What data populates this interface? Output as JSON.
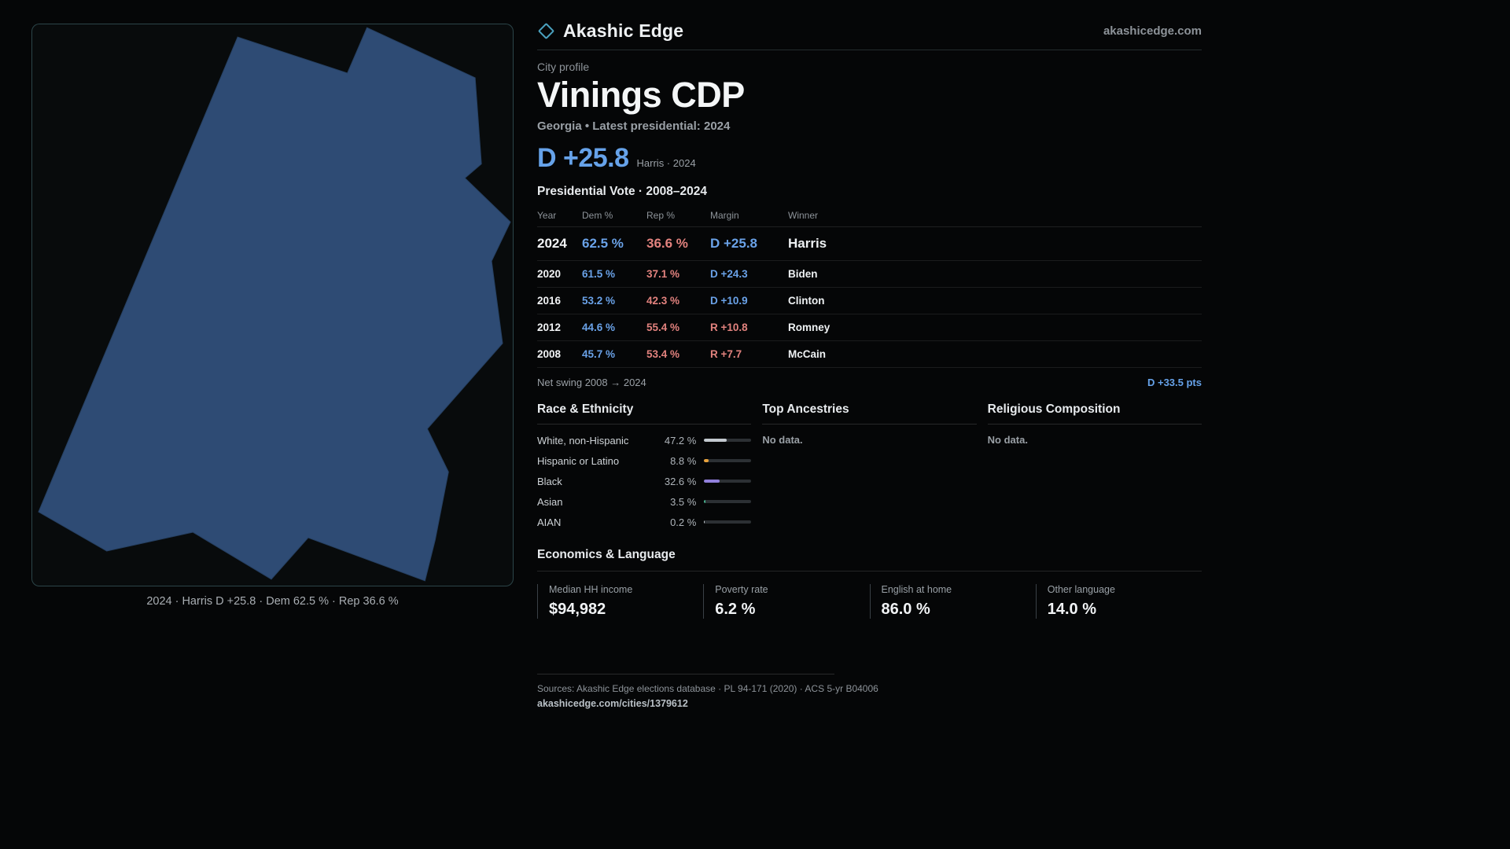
{
  "brand": {
    "name": "Akashic Edge",
    "domain": "akashicedge.com",
    "accent": "#4aa0bd"
  },
  "map": {
    "caption": "2024 · Harris D +25.8 · Dem 62.5 % · Rep 36.6 %",
    "boundary_fill": "#2e4b74",
    "panel_border": "#76bdc4"
  },
  "profile": {
    "kicker": "City profile",
    "title": "Vinings CDP",
    "subtitle": "Georgia • Latest presidential: 2024",
    "headline_margin": "D +25.8",
    "headline_note": "Harris · 2024"
  },
  "vote_table": {
    "title": "Presidential Vote · 2008–2024",
    "columns": [
      "Year",
      "Dem %",
      "Rep %",
      "Margin",
      "Winner"
    ],
    "rows": [
      {
        "year": "2024",
        "dem": "62.5 %",
        "rep": "36.6 %",
        "margin": "D +25.8",
        "winner": "Harris",
        "party": "D"
      },
      {
        "year": "2020",
        "dem": "61.5 %",
        "rep": "37.1 %",
        "margin": "D +24.3",
        "winner": "Biden",
        "party": "D"
      },
      {
        "year": "2016",
        "dem": "53.2 %",
        "rep": "42.3 %",
        "margin": "D +10.9",
        "winner": "Clinton",
        "party": "D"
      },
      {
        "year": "2012",
        "dem": "44.6 %",
        "rep": "55.4 %",
        "margin": "R +10.8",
        "winner": "Romney",
        "party": "R"
      },
      {
        "year": "2008",
        "dem": "45.7 %",
        "rep": "53.4 %",
        "margin": "R +7.7",
        "winner": "McCain",
        "party": "R"
      }
    ],
    "net_swing_label": "Net swing 2008 → 2024",
    "net_swing_value": "D +33.5 pts"
  },
  "demographics": {
    "race": {
      "title": "Race & Ethnicity",
      "rows": [
        {
          "label": "White, non-Hispanic",
          "value": "47.2 %",
          "pct": 47.2,
          "color": "#c3c9cf"
        },
        {
          "label": "Hispanic or Latino",
          "value": "8.8 %",
          "pct": 8.8,
          "color": "#e8a23c"
        },
        {
          "label": "Black",
          "value": "32.6 %",
          "pct": 32.6,
          "color": "#9180dc"
        },
        {
          "label": "Asian",
          "value": "3.5 %",
          "pct": 3.5,
          "color": "#45b08c"
        },
        {
          "label": "AIAN",
          "value": "0.2 %",
          "pct": 0.2,
          "color": "#c3c9cf"
        }
      ]
    },
    "ancestries": {
      "title": "Top Ancestries",
      "empty": "No data."
    },
    "religion": {
      "title": "Religious Composition",
      "empty": "No data."
    }
  },
  "economics": {
    "title": "Economics & Language",
    "stats": [
      {
        "label": "Median HH income",
        "value": "$94,982"
      },
      {
        "label": "Poverty rate",
        "value": "6.2 %"
      },
      {
        "label": "English at home",
        "value": "86.0 %"
      },
      {
        "label": "Other language",
        "value": "14.0 %"
      }
    ]
  },
  "footer": {
    "sources": "Sources: Akashic Edge elections database · PL 94-171 (2020) · ACS 5-yr B04006",
    "permalink": "akashicedge.com/cities/1379612"
  },
  "colors": {
    "dem_blue": "#6aa2e8",
    "rep_red": "#e2827e"
  }
}
